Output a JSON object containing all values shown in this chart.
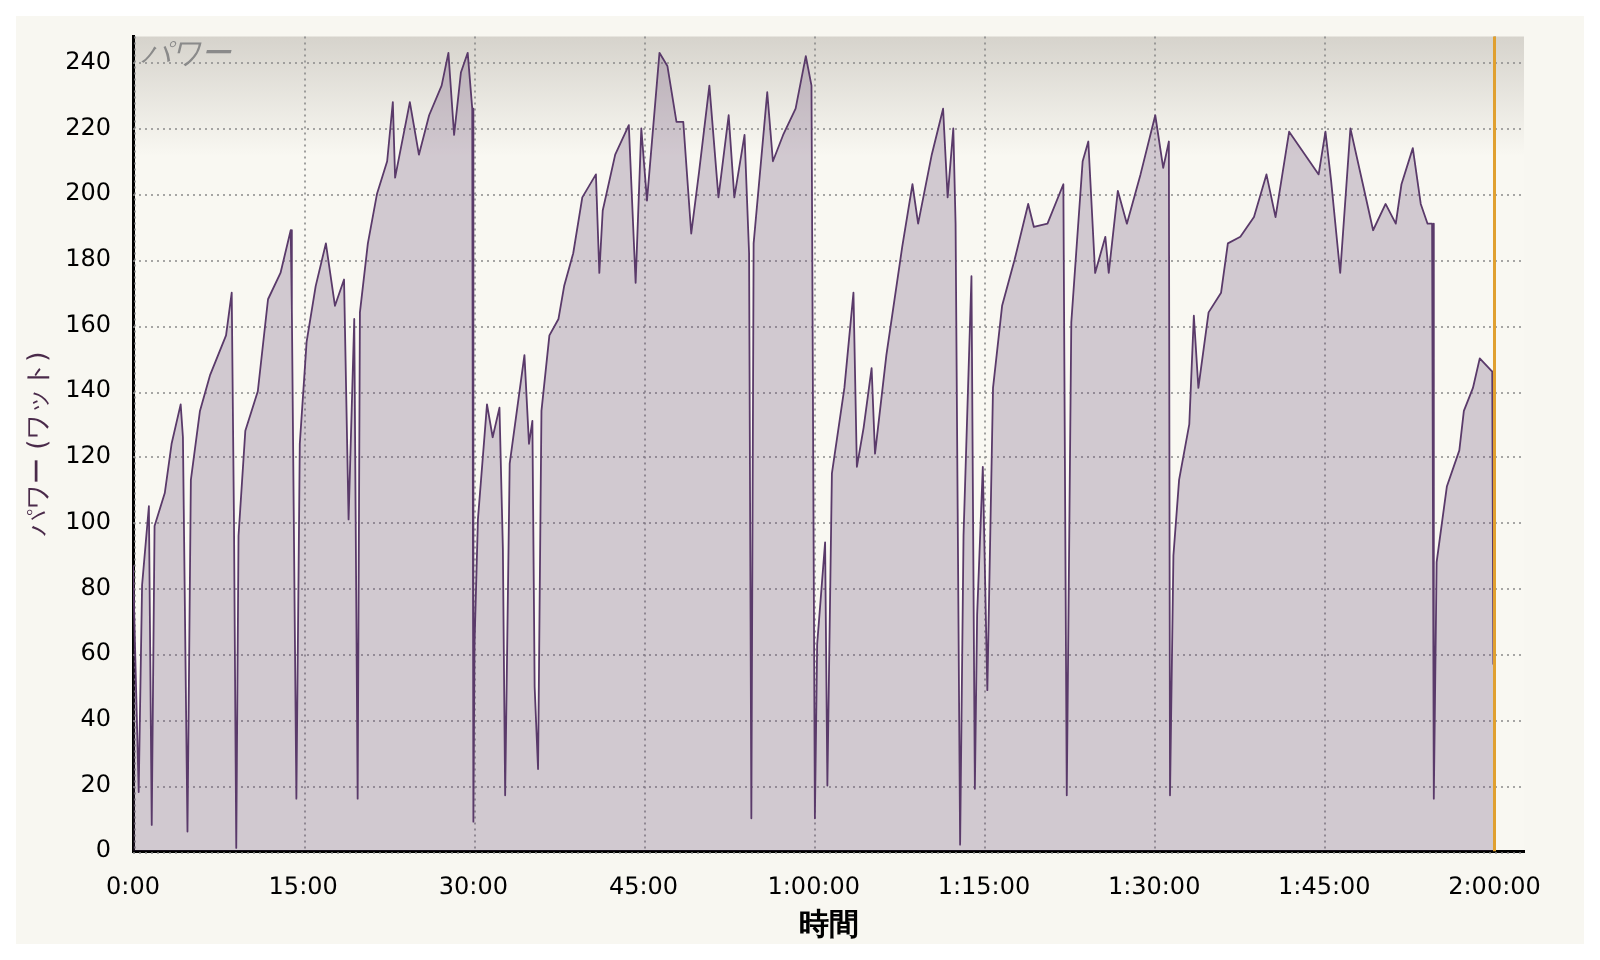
{
  "chart_data": {
    "type": "area",
    "title": "パワー",
    "xlabel": "時間",
    "ylabel": "パワー (ワット)",
    "x": [
      0,
      0.5,
      0.8,
      1.4,
      1.65,
      1.9,
      2.8,
      3.4,
      4.2,
      4.4,
      4.8,
      5.1,
      5.9,
      6.8,
      8.2,
      8.7,
      8.9,
      9.1,
      9.3,
      9.9,
      11,
      11.9,
      13,
      13.9,
      14,
      14.4,
      14.7,
      15.3,
      16.1,
      17,
      17.8,
      18.6,
      19,
      19.5,
      19.8,
      20,
      20.7,
      21.5,
      22.4,
      22.9,
      23.1,
      24.4,
      25.2,
      26.1,
      27.2,
      27.8,
      28.3,
      28.9,
      29.5,
      29.9,
      30,
      30.1,
      30.4,
      31.2,
      31.7,
      32.3,
      32.6,
      32.8,
      33.2,
      34.5,
      34.9,
      35.2,
      35.4,
      35.7,
      36,
      36.7,
      37.5,
      38,
      38.8,
      39.6,
      40.8,
      41.1,
      41.4,
      42.5,
      43.7,
      44.3,
      44.8,
      45.3,
      46.4,
      47.1,
      47.9,
      48.5,
      49.2,
      49.9,
      50.8,
      51.6,
      52.5,
      53,
      53.9,
      54.3,
      54.5,
      54.7,
      55.9,
      56.4,
      57.3,
      58.4,
      59.3,
      59.8,
      60.1,
      60.3,
      61,
      61.2,
      61.6,
      62.7,
      63.5,
      63.8,
      64.4,
      65.1,
      65.4,
      66.4,
      67.8,
      68.7,
      69.2,
      70.4,
      71.4,
      71.8,
      72.3,
      72.5,
      72.9,
      73.2,
      73.9,
      74.2,
      74.4,
      74.9,
      75.3,
      75.8,
      76.6,
      77.7,
      78.9,
      79.4,
      80.6,
      82,
      82.3,
      82.7,
      83.7,
      84.2,
      84.8,
      85.7,
      86,
      86.8,
      87.6,
      88.8,
      90.1,
      90.8,
      91.3,
      91.4,
      91.7,
      92.2,
      93.1,
      93.5,
      93.9,
      94.8,
      95.9,
      96.5,
      97.6,
      98.8,
      99.9,
      100.7,
      101.9,
      103.3,
      104.5,
      105.1,
      105.6,
      106.4,
      107.3,
      108.4,
      109.3,
      110.4,
      111.3,
      111.8,
      112.8,
      113.5,
      114.1,
      114.5,
      114.65,
      114.9,
      115.8,
      116.9,
      117.3,
      118.1,
      118.7,
      119.8,
      119.9
    ],
    "series": [
      {
        "color": "#5a3a6a",
        "values": [
          87,
          18,
          81,
          105,
          8,
          99,
          109,
          124,
          136,
          126,
          6,
          113,
          134,
          145,
          157,
          170,
          100,
          1,
          96,
          128,
          140,
          168,
          176,
          189,
          165,
          16,
          124,
          155,
          172,
          185,
          166,
          174,
          101,
          162,
          16,
          164,
          185,
          200,
          210,
          228,
          205,
          228,
          212,
          224,
          233,
          243,
          218,
          237,
          243,
          226,
          9,
          63,
          101,
          136,
          126,
          135,
          92,
          17,
          118,
          151,
          124,
          131,
          50,
          25,
          134,
          157,
          162,
          172,
          182,
          199,
          206,
          176,
          195,
          212,
          221,
          173,
          220,
          198,
          243,
          239,
          222,
          222,
          188,
          207,
          233,
          199,
          224,
          199,
          218,
          182,
          10,
          185,
          231,
          210,
          218,
          226,
          242,
          233,
          10,
          63,
          94,
          20,
          115,
          141,
          170,
          117,
          129,
          147,
          121,
          151,
          184,
          203,
          191,
          212,
          226,
          199,
          220,
          191,
          2,
          96,
          175,
          19,
          72,
          117,
          49,
          141,
          166,
          180,
          197,
          190,
          191,
          203,
          17,
          161,
          210,
          216,
          176,
          187,
          176,
          201,
          191,
          206,
          224,
          208,
          216,
          17,
          90,
          113,
          130,
          163,
          141,
          164,
          170,
          185,
          187,
          193,
          206,
          193,
          219,
          212,
          206,
          219,
          204,
          176,
          220,
          203,
          189,
          197,
          191,
          203,
          214,
          197,
          191,
          191,
          16,
          88,
          111,
          122,
          134,
          141,
          150,
          146,
          57
        ]
      }
    ],
    "xlim": [
      0,
      122.6
    ],
    "xticks": [
      {
        "value": 0,
        "label": "0:00"
      },
      {
        "value": 15,
        "label": "15:00"
      },
      {
        "value": 30,
        "label": "30:00"
      },
      {
        "value": 45,
        "label": "45:00"
      },
      {
        "value": 60,
        "label": "1:00:00"
      },
      {
        "value": 75,
        "label": "1:15:00"
      },
      {
        "value": 90,
        "label": "1:30:00"
      },
      {
        "value": 105,
        "label": "1:45:00"
      },
      {
        "value": 120,
        "label": "2:00:00"
      }
    ],
    "ylim": [
      0,
      248
    ],
    "yticks": [
      0,
      20,
      40,
      60,
      80,
      100,
      120,
      140,
      160,
      180,
      200,
      220,
      240
    ],
    "ref_lines": [
      {
        "axis": "x",
        "value": 120,
        "color": "#e0a030"
      }
    ],
    "grid": true,
    "legend": false,
    "marker": "none",
    "line_style": "solid"
  }
}
